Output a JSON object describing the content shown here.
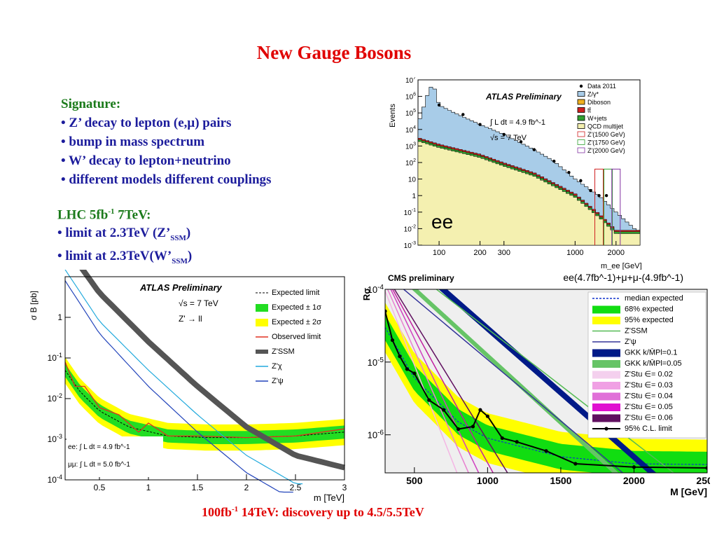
{
  "slide": {
    "title": "New Gauge Bosons",
    "signature": {
      "heading": "Signature:",
      "bullets": [
        "• Z’ decay to lepton (e,μ) pairs",
        "• bump in mass spectrum",
        "• W’ decay to lepton+neutrino",
        "• different models different couplings"
      ]
    },
    "lhc": {
      "heading_a": "LHC 5fb",
      "heading_sup": "-1",
      "heading_b": " 7TeV:",
      "limit1_a": "• limit at 2.3TeV (Z’",
      "limit1_sub": "SSM",
      "limit1_b": ")",
      "limit2_a": "• limit at 2.3TeV(W’",
      "limit2_sub": "SSM",
      "limit2_b": ")"
    },
    "footer": {
      "a": "100fb",
      "sup": "-1",
      "b": " 14TeV: discovery up to 4.5/5.5TeV"
    }
  },
  "chart_data": [
    {
      "type": "histogram",
      "title": "ATLAS Preliminary",
      "ylabel": "Events",
      "xlabel": "m_ee [GeV]",
      "yscale": "log",
      "ylim": [
        0.001,
        10000000
      ],
      "xscale": "log",
      "xlim": [
        70,
        3000
      ],
      "x_ticks": [
        "100",
        "200",
        "300",
        "1000",
        "2000"
      ],
      "y_ticks": [
        "10^-3",
        "10^-2",
        "10^-1",
        "1",
        "10",
        "10^2",
        "10^3",
        "10^4",
        "10^5",
        "10^6",
        "10^7"
      ],
      "annotations": [
        "∫ L dt = 4.9 fb^-1",
        "√s = 7 TeV",
        "ee"
      ],
      "legend": [
        "Data 2011",
        "Z/γ*",
        "Diboson",
        "tt̄",
        "W+jets",
        "QCD multijet",
        "Z'(1500 GeV)",
        "Z'(1750 GeV)",
        "Z'(2000 GeV)"
      ],
      "colors": {
        "dy": "#a8cce8",
        "diboson": "#f0b020",
        "ttbar": "#d02020",
        "wjets": "#30a030",
        "qcd": "#f4f0b0"
      },
      "series": [
        {
          "name": "Z/γ*",
          "x": [
            70,
            85,
            91,
            100,
            130,
            200,
            300,
            500,
            700,
            1000,
            1500,
            2000,
            3000
          ],
          "y": [
            20000,
            3000000,
            5000000,
            300000,
            100000,
            20000,
            5000,
            600,
            120,
            10,
            1,
            0.1,
            0.005
          ]
        },
        {
          "name": "QCD multijet",
          "x": [
            70,
            100,
            200,
            300,
            500,
            1000,
            1500,
            2000
          ],
          "y": [
            2000,
            800,
            200,
            60,
            15,
            0.8,
            0.05,
            0.005
          ]
        },
        {
          "name": "Data 2011",
          "x": [
            100,
            150,
            200,
            300,
            400,
            500,
            700,
            900,
            1100,
            1300,
            1500,
            1700
          ],
          "y": [
            300000,
            80000,
            20000,
            5000,
            1800,
            600,
            120,
            25,
            8,
            2,
            1,
            1
          ]
        }
      ]
    },
    {
      "type": "line",
      "title": "ATLAS Preliminary",
      "ylabel": "σ B [pb]",
      "xlabel": "m [TeV]",
      "yscale": "log",
      "ylim": [
        0.0001,
        10
      ],
      "xlim": [
        0.15,
        3
      ],
      "x_ticks": [
        "0.5",
        "1",
        "1.5",
        "2",
        "2.5",
        "3"
      ],
      "y_ticks": [
        "10^-4",
        "10^-3",
        "10^-2",
        "10^-1",
        "1"
      ],
      "annotations": [
        "√s = 7 TeV",
        "Z' → ll",
        "ee: ∫ L dt = 4.9 fb^-1",
        "μμ: ∫ L dt = 5.0 fb^-1"
      ],
      "legend": [
        "Expected limit",
        "Expected ± 1σ",
        "Expected ± 2σ",
        "Observed limit",
        "Z'SSM",
        "Z'χ",
        "Z'ψ"
      ],
      "colors": {
        "band1": "#22dd22",
        "band2": "#ffff00",
        "observed": "#e03020",
        "ssm": "#555555",
        "chi": "#22aadd",
        "psi": "#2244bb"
      },
      "series": [
        {
          "name": "Expected limit",
          "x": [
            0.15,
            0.3,
            0.5,
            0.8,
            1.2,
            1.6,
            2.0,
            2.5,
            3.0
          ],
          "y": [
            0.05,
            0.015,
            0.005,
            0.002,
            0.0012,
            0.0011,
            0.0011,
            0.0012,
            0.0015
          ]
        },
        {
          "name": "Observed limit",
          "x": [
            0.15,
            0.25,
            0.35,
            0.5,
            0.7,
            0.9,
            1.0,
            1.2,
            1.5,
            2.0,
            2.5,
            3.0
          ],
          "y": [
            0.08,
            0.02,
            0.02,
            0.006,
            0.004,
            0.0015,
            0.0025,
            0.0012,
            0.0012,
            0.0011,
            0.0012,
            0.0018
          ]
        },
        {
          "name": "Z'SSM",
          "x": [
            0.15,
            0.5,
            1.0,
            1.5,
            2.0,
            2.5,
            3.0
          ],
          "y": [
            60,
            4,
            0.25,
            0.02,
            0.002,
            0.0004,
            0.0002
          ]
        },
        {
          "name": "Z'χ",
          "x": [
            0.15,
            0.5,
            1.0,
            1.5,
            2.0,
            2.5
          ],
          "y": [
            15,
            0.8,
            0.05,
            0.004,
            0.0004,
            8e-05
          ]
        },
        {
          "name": "Z'ψ",
          "x": [
            0.15,
            0.5,
            1.0,
            1.5,
            2.0,
            2.5
          ],
          "y": [
            8,
            0.4,
            0.02,
            0.0015,
            0.00015,
            3e-05
          ]
        }
      ]
    },
    {
      "type": "line",
      "title": "CMS preliminary",
      "subtitle": "ee(4.7fb^-1)+μ+μ-(4.9fb^-1)",
      "ylabel": "Rσ",
      "xlabel": "M [GeV]",
      "yscale": "log",
      "ylim": [
        3e-07,
        0.0001
      ],
      "xlim": [
        300,
        2500
      ],
      "x_ticks": [
        "500",
        "1000",
        "1500",
        "2000",
        "2500"
      ],
      "y_ticks": [
        "10^-4",
        "10^-5",
        "10^-6"
      ],
      "legend": [
        "median expected",
        "68% expected",
        "95% expected",
        "Z'SSM",
        "Z'ψ",
        "GKK k/M̄Pl=0.1",
        "GKK k/M̄Pl=0.05",
        "Z'Stu ∈= 0.02",
        "Z'Stu ∈= 0.03",
        "Z'Stu ∈= 0.04",
        "Z'Stu ∈= 0.05",
        "Z'Stu ∈= 0.06",
        "95% C.L. limit"
      ],
      "colors": {
        "band68": "#11dd11",
        "band95": "#ffff00",
        "median": "#1133cc",
        "gkk01": "#001a88",
        "gkk005": "#66c466"
      },
      "series": [
        {
          "name": "95% C.L. limit",
          "x": [
            300,
            350,
            400,
            450,
            500,
            600,
            700,
            800,
            900,
            950,
            1000,
            1100,
            1200,
            1400,
            1600,
            2000,
            2500
          ],
          "y": [
            5e-05,
            2e-05,
            1.2e-05,
            8e-06,
            7e-06,
            3e-06,
            2.2e-06,
            1.2e-06,
            1.3e-06,
            2.2e-06,
            1.8e-06,
            9e-07,
            8e-07,
            6e-07,
            4e-07,
            3.6e-07,
            3.5e-07
          ]
        },
        {
          "name": "median expected",
          "x": [
            300,
            500,
            800,
            1000,
            1500,
            2000,
            2500
          ],
          "y": [
            3e-05,
            6e-06,
            1.5e-06,
            9e-07,
            5e-07,
            4e-07,
            3.9e-07
          ]
        }
      ]
    }
  ]
}
